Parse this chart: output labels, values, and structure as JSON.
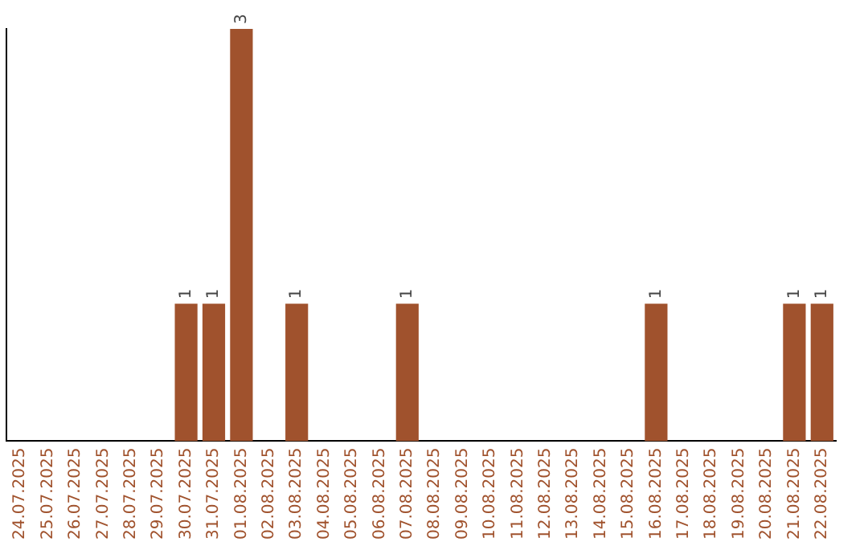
{
  "chart_data": {
    "type": "bar",
    "categories": [
      "24.07.2025",
      "25.07.2025",
      "26.07.2025",
      "27.07.2025",
      "28.07.2025",
      "29.07.2025",
      "30.07.2025",
      "31.07.2025",
      "01.08.2025",
      "02.08.2025",
      "03.08.2025",
      "04.08.2025",
      "05.08.2025",
      "06.08.2025",
      "07.08.2025",
      "08.08.2025",
      "09.08.2025",
      "10.08.2025",
      "11.08.2025",
      "12.08.2025",
      "13.08.2025",
      "14.08.2025",
      "15.08.2025",
      "16.08.2025",
      "17.08.2025",
      "18.08.2025",
      "19.08.2025",
      "20.08.2025",
      "21.08.2025",
      "22.08.2025"
    ],
    "values": [
      0,
      0,
      0,
      0,
      0,
      0,
      1,
      1,
      3,
      0,
      1,
      0,
      0,
      0,
      1,
      0,
      0,
      0,
      0,
      0,
      0,
      0,
      0,
      1,
      0,
      0,
      0,
      0,
      1,
      1
    ],
    "value_labels": [
      null,
      null,
      null,
      null,
      null,
      null,
      "1",
      "1",
      "3",
      null,
      "1",
      null,
      null,
      null,
      "1",
      null,
      null,
      null,
      null,
      null,
      null,
      null,
      null,
      "1",
      null,
      null,
      null,
      null,
      "1",
      "1"
    ],
    "color": "#a0522d",
    "ylim": [
      0,
      3
    ],
    "tick_labels": "x",
    "grid": false,
    "legend": false
  }
}
